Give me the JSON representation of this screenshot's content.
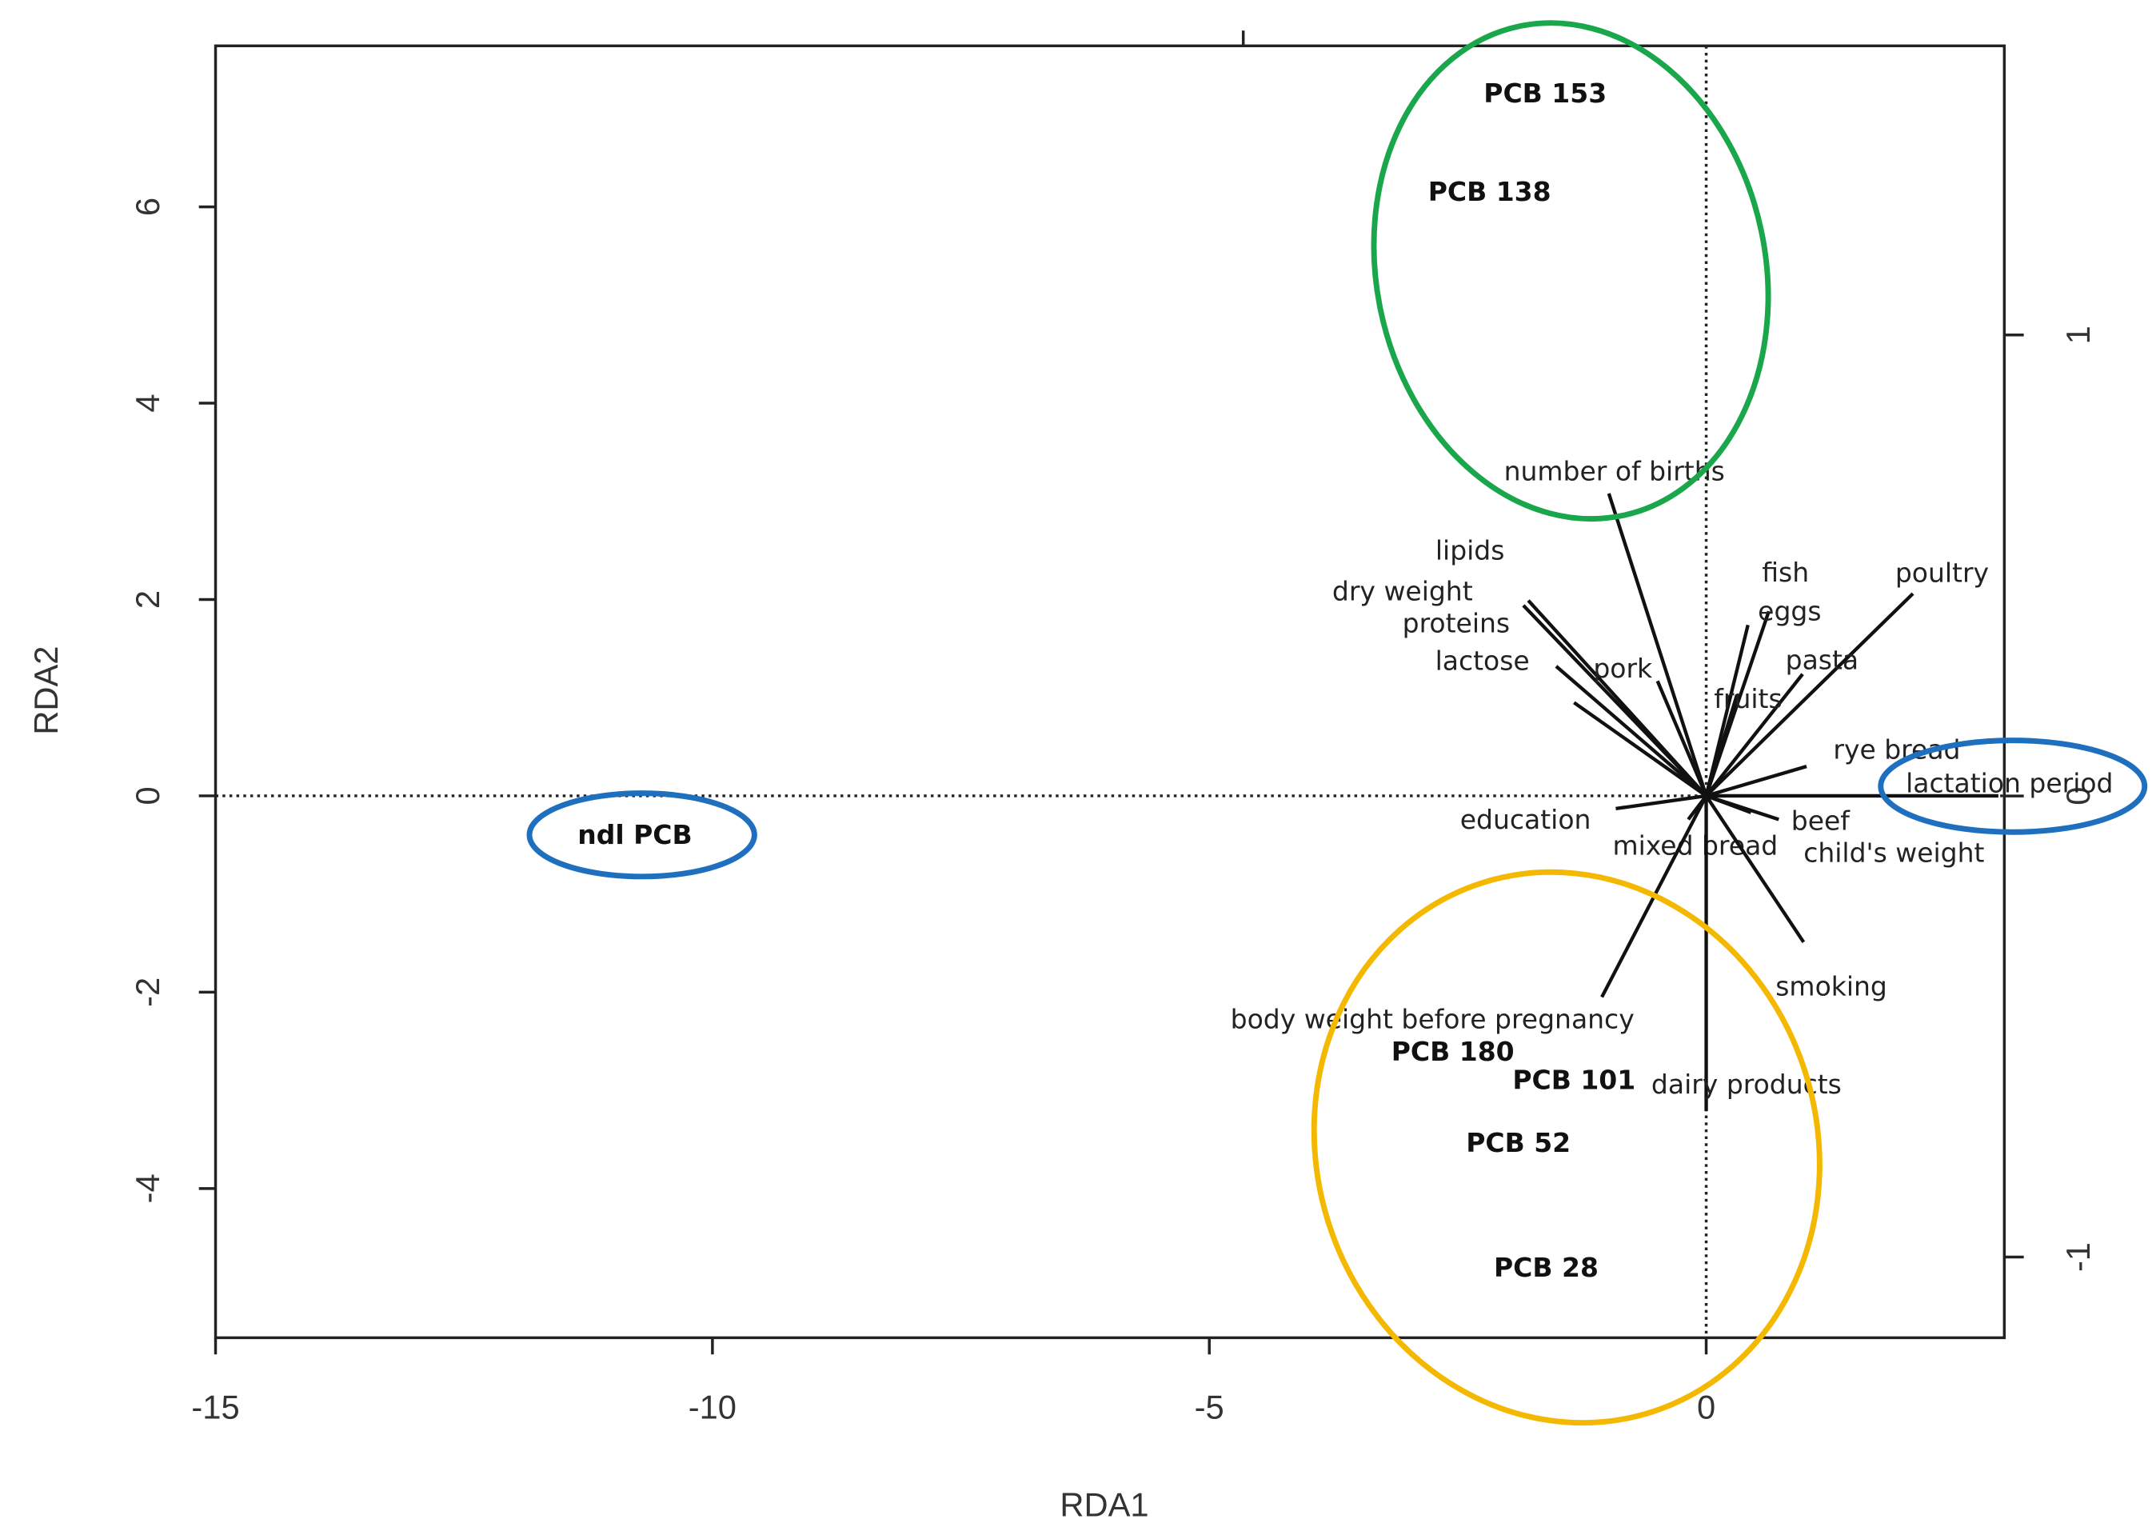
{
  "chart_data": {
    "type": "biplot",
    "xlabel": "RDA1",
    "ylabel": "RDA2",
    "xlim": [
      -15,
      3
    ],
    "ylim": [
      -5.52,
      7.64
    ],
    "xticks": [
      -15,
      -10,
      -5,
      0
    ],
    "yticks": [
      -4,
      -2,
      0,
      2,
      4,
      6
    ],
    "y2lim": [
      -1.175,
      1.627
    ],
    "y2ticks": [
      -1,
      0,
      1
    ],
    "points": [
      {
        "label": "PCB 153",
        "x": -1.62,
        "y": 7.14
      },
      {
        "label": "PCB 138",
        "x": -2.18,
        "y": 6.14
      },
      {
        "label": "ndl PCB",
        "x": -10.78,
        "y": -0.41
      },
      {
        "label": "PCB 180",
        "x": -2.55,
        "y": -2.62
      },
      {
        "label": "PCB 101",
        "x": -1.33,
        "y": -2.91
      },
      {
        "label": "PCB 52",
        "x": -1.89,
        "y": -3.55
      },
      {
        "label": "PCB 28",
        "x": -1.61,
        "y": -4.82
      }
    ],
    "arrows": [
      {
        "label": "number of births",
        "x": -0.98,
        "y": 3.08
      },
      {
        "label": "lipids",
        "x": -1.79,
        "y": 1.99
      },
      {
        "label": "dry weight",
        "x": -1.84,
        "y": 1.94
      },
      {
        "label": "proteins",
        "x": -1.51,
        "y": 1.32
      },
      {
        "label": "lactose",
        "x": -1.33,
        "y": 0.95
      },
      {
        "label": "pork",
        "x": -0.49,
        "y": 1.17
      },
      {
        "label": "fish",
        "x": 0.63,
        "y": 1.88
      },
      {
        "label": "eggs",
        "x": 0.42,
        "y": 1.74
      },
      {
        "label": "poultry",
        "x": 2.08,
        "y": 2.06
      },
      {
        "label": "pasta",
        "x": 0.97,
        "y": 1.24
      },
      {
        "label": "fruits",
        "x": 0.31,
        "y": 1.03
      },
      {
        "label": "rye bread",
        "x": 1.01,
        "y": 0.3
      },
      {
        "label": "lactation period",
        "x": 2.94,
        "y": 0
      },
      {
        "label": "beef",
        "x": 0.73,
        "y": -0.24
      },
      {
        "label": "child's weight",
        "x": 0.45,
        "y": -0.17
      },
      {
        "label": "mixed bread",
        "x": -0.18,
        "y": -0.24
      },
      {
        "label": "education",
        "x": -0.91,
        "y": -0.13
      },
      {
        "label": "smoking",
        "x": 0.98,
        "y": -1.49
      },
      {
        "label": "body weight before pregnancy",
        "x": -1.05,
        "y": -2.05
      },
      {
        "label": "dairy products",
        "x": 0,
        "y": -3.21
      }
    ]
  }
}
